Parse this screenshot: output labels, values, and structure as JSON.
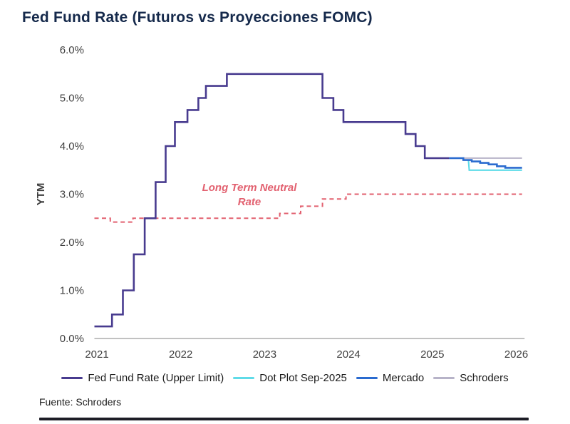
{
  "title": "Fed Fund Rate (Futuros vs Proyecciones FOMC)",
  "source": "Fuente: Schroders",
  "annotation": {
    "text": "Long Term Neutral Rate",
    "color": "#E2606F"
  },
  "colors": {
    "title": "#15294B",
    "fed_fund_rate": "#483B8F",
    "dot_plot": "#5FDBE8",
    "mercado": "#2A6BCF",
    "schroders": "#B7B3C8",
    "neutral_rate": "#E2606F",
    "axis_label": "#3F3F3F",
    "axis_line": "#C1C1C1",
    "bottom_bar": "#1D1D26"
  },
  "chart_data": {
    "type": "line",
    "title": "Fed Fund Rate (Futuros vs Proyecciones FOMC)",
    "xlabel": "",
    "ylabel": "YTM",
    "ylim": [
      0,
      6
    ],
    "xlim": [
      2020.97,
      2026.1
    ],
    "grid": false,
    "legend_position": "bottom",
    "x_ticks": [
      2021,
      2022,
      2023,
      2024,
      2025,
      2026
    ],
    "y_ticks": [
      "0.0%",
      "1.0%",
      "2.0%",
      "3.0%",
      "4.0%",
      "5.0%",
      "6.0%"
    ],
    "axis": {
      "label_color": "#3F3F3F",
      "line_color": "#C1C1C1"
    },
    "series": [
      {
        "name": "Long Term Neutral Rate",
        "color": "#E2606F",
        "width": 2,
        "style": "dashed",
        "mode": "step",
        "points": [
          [
            2020.97,
            2.5
          ],
          [
            2021.16,
            2.42
          ],
          [
            2021.43,
            2.5
          ],
          [
            2023.18,
            2.6
          ],
          [
            2023.43,
            2.75
          ],
          [
            2023.69,
            2.9
          ],
          [
            2023.97,
            3.0
          ],
          [
            2026.07,
            3.0
          ]
        ]
      },
      {
        "name": "Schroders",
        "color": "#B7B3C8",
        "width": 2,
        "style": "solid",
        "mode": "step",
        "points": [
          [
            2025.18,
            3.75
          ],
          [
            2026.07,
            3.75
          ]
        ]
      },
      {
        "name": "Dot Plot Sep-2025",
        "color": "#5FDBE8",
        "width": 2.2,
        "style": "solid",
        "mode": "line",
        "points": [
          [
            2025.43,
            3.72
          ],
          [
            2025.44,
            3.5
          ],
          [
            2026.07,
            3.5
          ]
        ]
      },
      {
        "name": "Mercado",
        "color": "#2A6BCF",
        "width": 2.6,
        "style": "solid",
        "mode": "step",
        "points": [
          [
            2025.2,
            3.75
          ],
          [
            2025.37,
            3.71
          ],
          [
            2025.47,
            3.68
          ],
          [
            2025.57,
            3.65
          ],
          [
            2025.67,
            3.62
          ],
          [
            2025.77,
            3.58
          ],
          [
            2025.87,
            3.55
          ],
          [
            2026.07,
            3.55
          ]
        ]
      },
      {
        "name": "Fed Fund Rate (Upper Limit)",
        "color": "#483B8F",
        "width": 2.6,
        "style": "solid",
        "mode": "step",
        "points": [
          [
            2020.97,
            0.25
          ],
          [
            2021.18,
            0.5
          ],
          [
            2021.31,
            1.0
          ],
          [
            2021.44,
            1.75
          ],
          [
            2021.57,
            2.5
          ],
          [
            2021.7,
            3.25
          ],
          [
            2021.82,
            4.0
          ],
          [
            2021.93,
            4.5
          ],
          [
            2022.08,
            4.75
          ],
          [
            2022.21,
            5.0
          ],
          [
            2022.3,
            5.25
          ],
          [
            2022.55,
            5.5
          ],
          [
            2023.69,
            5.0
          ],
          [
            2023.82,
            4.75
          ],
          [
            2023.94,
            4.5
          ],
          [
            2024.68,
            4.25
          ],
          [
            2024.8,
            4.0
          ],
          [
            2024.91,
            3.75
          ],
          [
            2025.2,
            3.75
          ]
        ]
      }
    ]
  },
  "legend": [
    {
      "label": "Fed Fund Rate (Upper Limit)",
      "color": "#483B8F"
    },
    {
      "label": "Dot Plot Sep-2025",
      "color": "#5FDBE8"
    },
    {
      "label": "Mercado",
      "color": "#2A6BCF"
    },
    {
      "label": "Schroders",
      "color": "#B7B3C8"
    }
  ]
}
